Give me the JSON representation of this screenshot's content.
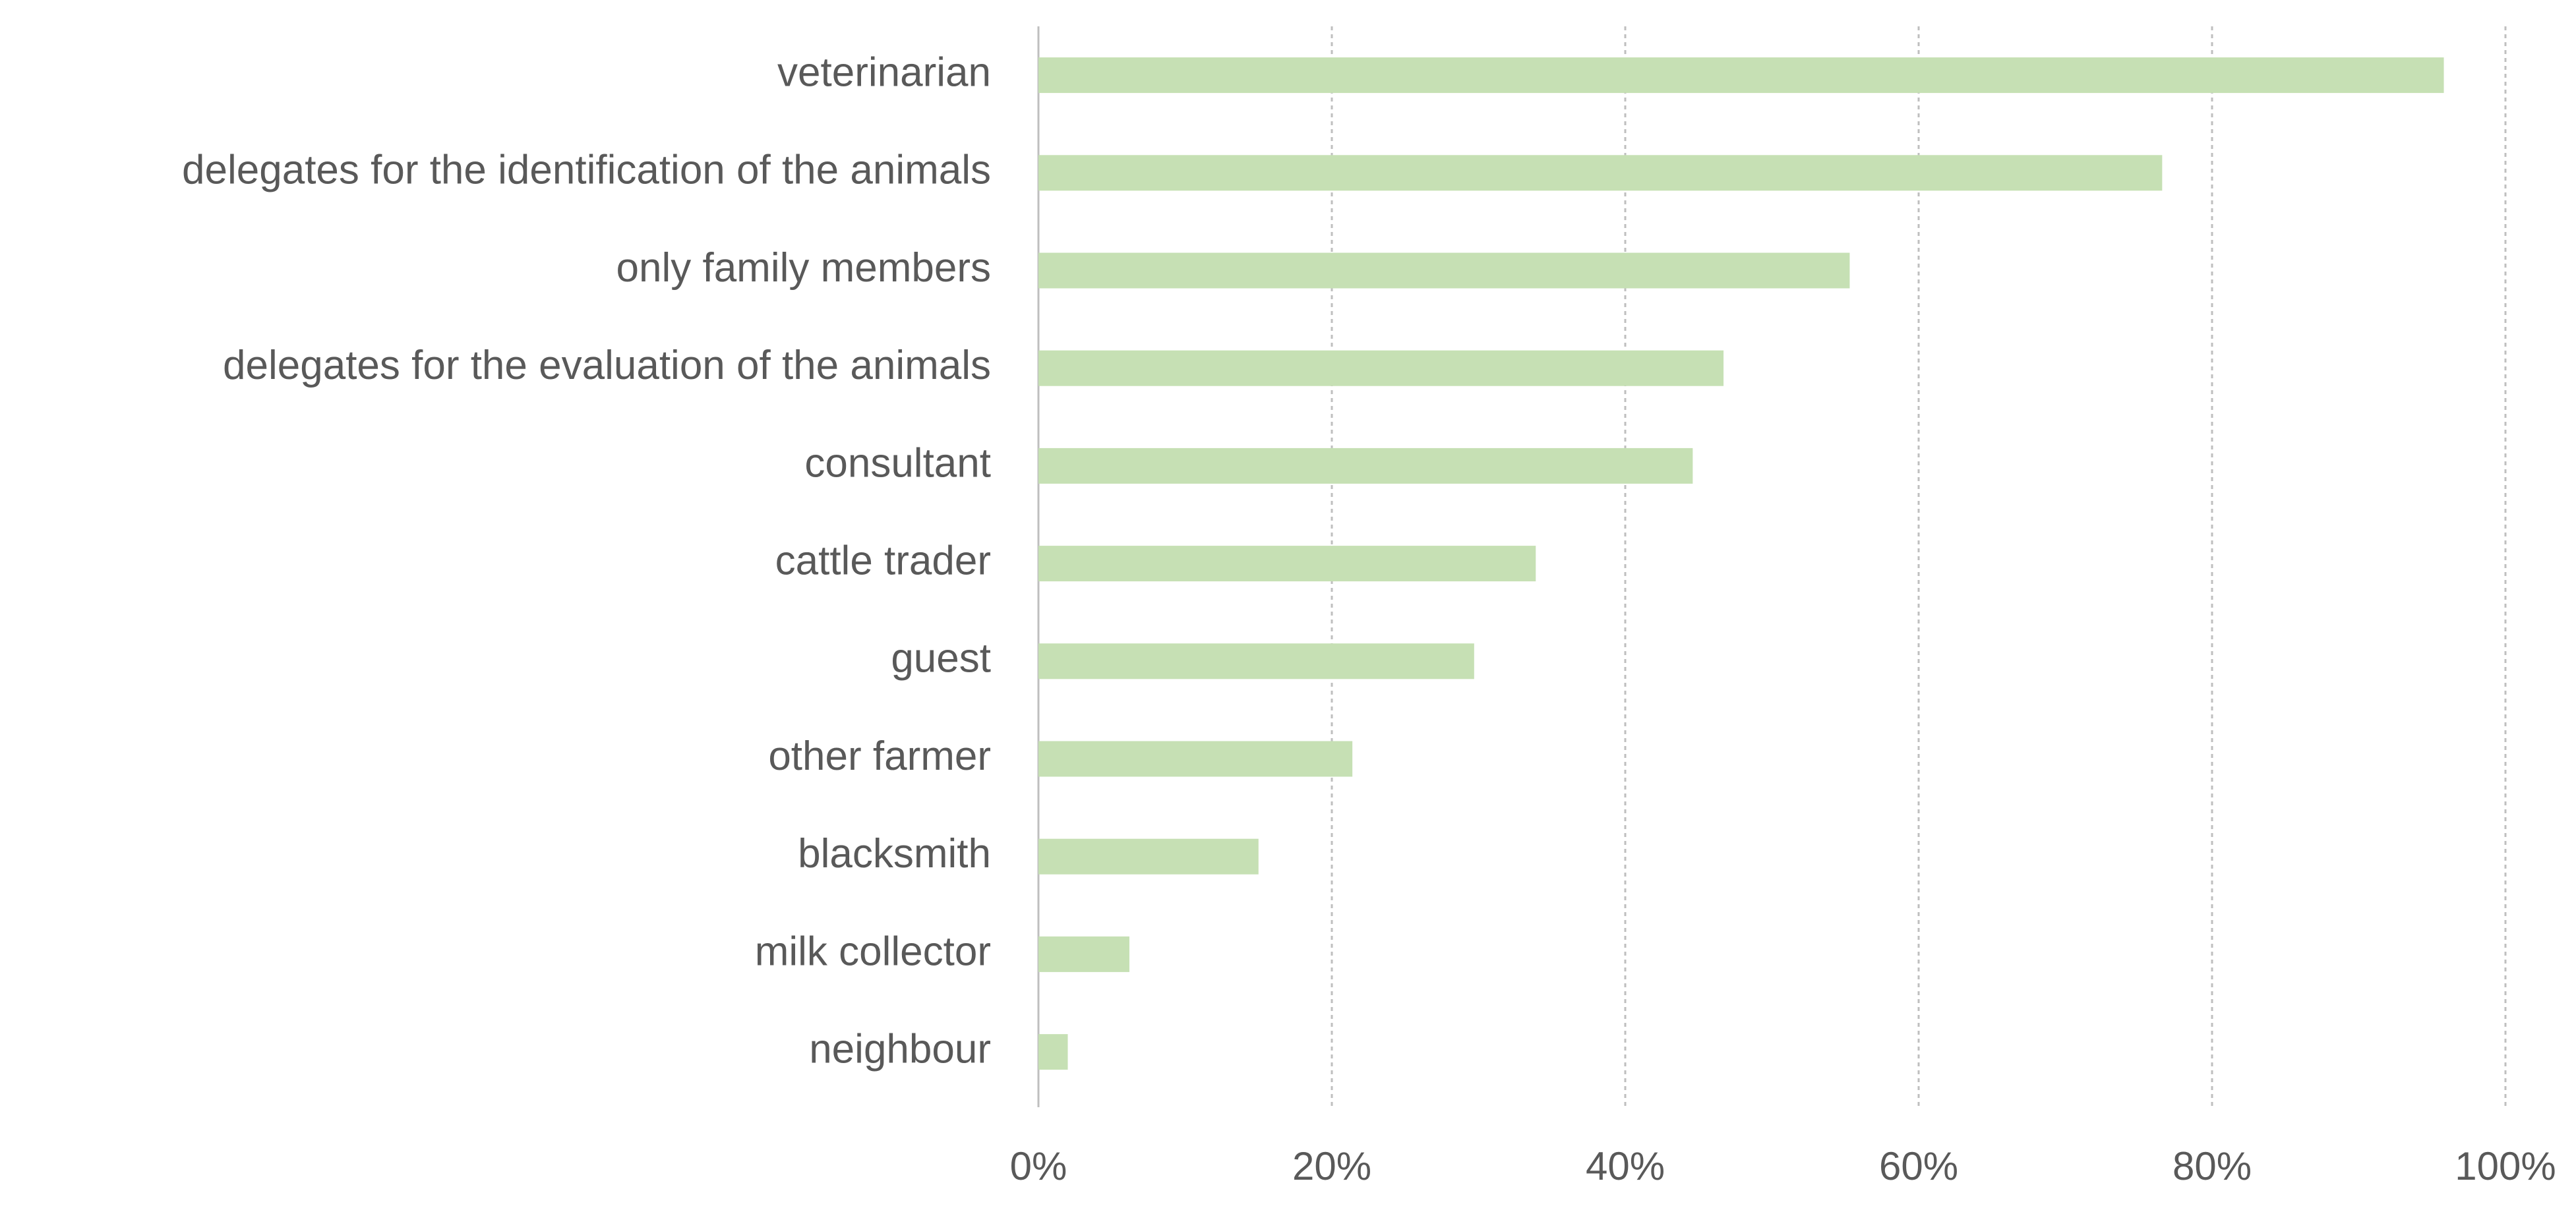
{
  "chart_data": {
    "type": "bar",
    "orientation": "horizontal",
    "categories": [
      "veterinarian",
      "delegates for the identification of the animals",
      "only family members",
      "delegates for the evaluation of the animals",
      "consultant",
      "cattle trader",
      "guest",
      "other farmer",
      "blacksmith",
      "milk collector",
      "neighbour"
    ],
    "values": [
      95.8,
      76.6,
      55.3,
      46.7,
      44.6,
      33.9,
      29.7,
      21.4,
      15.0,
      6.2,
      2.0
    ],
    "xlim": [
      0,
      100
    ],
    "xticks": [
      0,
      20,
      40,
      60,
      80,
      100
    ],
    "xtick_labels": [
      "0%",
      "20%",
      "40%",
      "60%",
      "80%",
      "100%"
    ],
    "title": "",
    "xlabel": "",
    "ylabel": "",
    "grid": "vertical-dashed",
    "legend": "none",
    "bar_color": "#c6e0b4",
    "grid_color": "#bfbfbf",
    "label_color": "#595959"
  }
}
